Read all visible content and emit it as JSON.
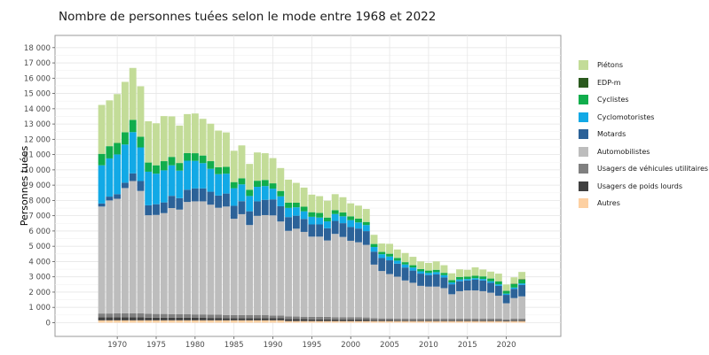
{
  "chart_data": {
    "type": "bar",
    "stacked": true,
    "title": "Nombre de personnes tuées selon le mode entre 1968 et 2022",
    "xlabel": "",
    "ylabel": "Personnes tuées",
    "xlim": [
      1962,
      2027
    ],
    "ylim": [
      -900,
      18800
    ],
    "x_ticks": [
      1970,
      1975,
      1980,
      1985,
      1990,
      1995,
      2000,
      2005,
      2010,
      2015,
      2020
    ],
    "y_ticks": [
      0,
      1000,
      2000,
      3000,
      4000,
      5000,
      6000,
      7000,
      8000,
      9000,
      10000,
      11000,
      12000,
      13000,
      14000,
      15000,
      16000,
      17000,
      18000
    ],
    "y_tick_labels": [
      "0",
      "1 000",
      "2 000",
      "3 000",
      "4 000",
      "5 000",
      "6 000",
      "7 000",
      "8 000",
      "9 000",
      "10 000",
      "11 000",
      "12 000",
      "13 000",
      "14 000",
      "15 000",
      "16 000",
      "17 000",
      "18 000"
    ],
    "grid": true,
    "legend_position": "right",
    "x": [
      1968,
      1969,
      1970,
      1971,
      1972,
      1973,
      1974,
      1975,
      1976,
      1977,
      1978,
      1979,
      1980,
      1981,
      1982,
      1983,
      1984,
      1985,
      1986,
      1987,
      1988,
      1989,
      1990,
      1991,
      1992,
      1993,
      1994,
      1995,
      1996,
      1997,
      1998,
      1999,
      2000,
      2001,
      2002,
      2003,
      2004,
      2005,
      2006,
      2007,
      2008,
      2009,
      2010,
      2011,
      2012,
      2013,
      2014,
      2015,
      2016,
      2017,
      2018,
      2019,
      2020,
      2021,
      2022
    ],
    "series": [
      {
        "name": "Autres",
        "color": "#fdd0a2",
        "values": [
          150,
          150,
          150,
          150,
          150,
          150,
          150,
          150,
          150,
          150,
          150,
          150,
          150,
          150,
          150,
          150,
          150,
          150,
          150,
          150,
          150,
          150,
          150,
          150,
          100,
          100,
          100,
          100,
          100,
          100,
          100,
          100,
          100,
          100,
          100,
          100,
          100,
          100,
          100,
          100,
          100,
          100,
          100,
          100,
          100,
          100,
          100,
          100,
          100,
          100,
          100,
          100,
          80,
          100,
          100
        ]
      },
      {
        "name": "Usagers de poids lourds",
        "color": "#404040",
        "values": [
          200,
          200,
          200,
          200,
          200,
          200,
          180,
          180,
          180,
          170,
          170,
          170,
          170,
          170,
          160,
          160,
          150,
          150,
          150,
          150,
          150,
          150,
          140,
          140,
          140,
          130,
          130,
          120,
          120,
          120,
          110,
          110,
          110,
          110,
          100,
          80,
          70,
          70,
          60,
          60,
          60,
          60,
          60,
          60,
          60,
          60,
          60,
          60,
          60,
          60,
          60,
          60,
          50,
          60,
          60
        ]
      },
      {
        "name": "Usagers de véhicules utilitaires",
        "color": "#808080",
        "values": [
          250,
          250,
          260,
          260,
          270,
          270,
          250,
          240,
          240,
          230,
          230,
          230,
          220,
          220,
          210,
          210,
          200,
          200,
          200,
          190,
          190,
          190,
          180,
          180,
          170,
          170,
          160,
          160,
          160,
          160,
          150,
          150,
          150,
          150,
          140,
          120,
          110,
          110,
          100,
          100,
          100,
          100,
          100,
          100,
          100,
          100,
          100,
          100,
          100,
          100,
          100,
          100,
          90,
          100,
          110
        ]
      },
      {
        "name": "Automobilistes",
        "color": "#bdbdbd",
        "values": [
          7000,
          7400,
          7500,
          8200,
          8650,
          8000,
          6450,
          6480,
          6600,
          6950,
          6850,
          7350,
          7400,
          7400,
          7200,
          7000,
          7100,
          6300,
          6600,
          5900,
          6500,
          6550,
          6550,
          6150,
          5600,
          5750,
          5550,
          5250,
          5250,
          5000,
          5450,
          5250,
          5000,
          4900,
          4750,
          3500,
          3100,
          2900,
          2750,
          2500,
          2350,
          2150,
          2100,
          2100,
          2000,
          1600,
          1800,
          1850,
          1850,
          1800,
          1700,
          1500,
          1050,
          1350,
          1450
        ]
      },
      {
        "name": "Motards",
        "color": "#2c6298",
        "values": [
          200,
          250,
          300,
          350,
          500,
          650,
          650,
          700,
          700,
          800,
          750,
          800,
          850,
          850,
          850,
          800,
          850,
          850,
          850,
          900,
          950,
          1000,
          1050,
          1000,
          900,
          850,
          850,
          800,
          800,
          800,
          850,
          900,
          900,
          900,
          900,
          850,
          850,
          900,
          850,
          850,
          800,
          800,
          750,
          800,
          700,
          650,
          650,
          650,
          700,
          700,
          650,
          650,
          550,
          600,
          750
        ]
      },
      {
        "name": "Cyclomotoristes",
        "color": "#12a9e6",
        "values": [
          2500,
          2500,
          2600,
          2500,
          2700,
          2200,
          2200,
          2000,
          2100,
          2000,
          1800,
          1900,
          1800,
          1650,
          1500,
          1400,
          1300,
          1150,
          1100,
          1000,
          950,
          900,
          700,
          650,
          600,
          550,
          500,
          500,
          450,
          450,
          450,
          450,
          450,
          400,
          400,
          300,
          250,
          250,
          200,
          200,
          200,
          150,
          150,
          150,
          150,
          120,
          120,
          100,
          100,
          100,
          100,
          100,
          80,
          90,
          100
        ]
      },
      {
        "name": "Cyclistes",
        "color": "#11ad4c",
        "values": [
          750,
          800,
          750,
          800,
          800,
          700,
          600,
          550,
          600,
          550,
          500,
          500,
          500,
          500,
          500,
          450,
          450,
          400,
          400,
          400,
          400,
          400,
          350,
          350,
          350,
          300,
          300,
          300,
          300,
          250,
          250,
          250,
          250,
          250,
          200,
          200,
          150,
          180,
          180,
          150,
          150,
          150,
          150,
          150,
          150,
          150,
          160,
          150,
          160,
          170,
          180,
          190,
          180,
          230,
          240
        ]
      },
      {
        "name": "EDP-m",
        "color": "#2b5a1e",
        "values": [
          0,
          0,
          0,
          0,
          0,
          0,
          0,
          0,
          0,
          0,
          0,
          0,
          0,
          0,
          0,
          0,
          0,
          0,
          0,
          0,
          0,
          0,
          0,
          0,
          0,
          0,
          0,
          0,
          0,
          0,
          0,
          0,
          0,
          0,
          0,
          0,
          0,
          0,
          0,
          0,
          0,
          0,
          0,
          0,
          0,
          0,
          0,
          0,
          0,
          0,
          0,
          10,
          10,
          20,
          30
        ]
      },
      {
        "name": "Piétons",
        "color": "#c3dc98",
        "values": [
          3200,
          3000,
          3200,
          3300,
          3400,
          3300,
          2700,
          2750,
          2950,
          2650,
          2450,
          2550,
          2600,
          2400,
          2450,
          2400,
          2250,
          2050,
          2150,
          1700,
          1850,
          1750,
          1650,
          1500,
          1500,
          1300,
          1250,
          1150,
          1100,
          1100,
          1050,
          1000,
          850,
          850,
          850,
          600,
          550,
          650,
          550,
          600,
          550,
          500,
          500,
          550,
          500,
          450,
          500,
          450,
          550,
          450,
          450,
          500,
          410,
          420,
          480
        ]
      }
    ]
  }
}
